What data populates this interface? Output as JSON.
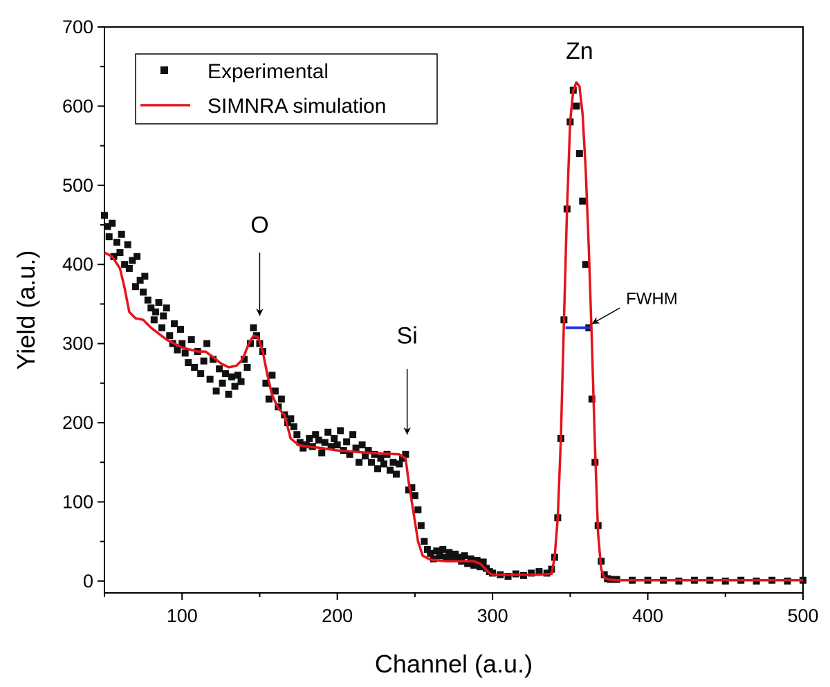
{
  "chart_data": {
    "type": "scatter",
    "xlabel": "Channel (a.u.)",
    "ylabel": "Yield (a.u.)",
    "xlim": [
      50,
      500
    ],
    "ylim": [
      -15,
      700
    ],
    "xticks": [
      100,
      200,
      300,
      400,
      500
    ],
    "yticks": [
      0,
      100,
      200,
      300,
      400,
      500,
      600,
      700
    ],
    "grid": false,
    "legend_position": "top-left",
    "annotations": [
      {
        "text": "O",
        "x": 150,
        "label_y": 440,
        "arrow_from_y": 415,
        "arrow_to_y": 335
      },
      {
        "text": "Si",
        "x": 245,
        "label_y": 300,
        "arrow_from_y": 268,
        "arrow_to_y": 185
      },
      {
        "text": "Zn",
        "x": 356,
        "label_y": 660
      },
      {
        "text": "FWHM",
        "x": 386,
        "label_y": 350,
        "arrow_from_x": 382,
        "arrow_from_y": 345,
        "arrow_to_x": 364,
        "arrow_to_y": 325
      }
    ],
    "fwhm": {
      "x_start": 347,
      "x_end": 363,
      "y": 320,
      "color": "#1f2fe0"
    },
    "series": [
      {
        "name": "Experimental",
        "style": "square-markers",
        "color": "#111111",
        "x": [
          50,
          52,
          53,
          55,
          56,
          58,
          60,
          61,
          63,
          65,
          66,
          68,
          70,
          71,
          73,
          75,
          76,
          78,
          80,
          82,
          83,
          85,
          87,
          88,
          90,
          92,
          94,
          95,
          97,
          99,
          100,
          102,
          104,
          106,
          108,
          110,
          112,
          114,
          116,
          118,
          120,
          122,
          124,
          126,
          128,
          130,
          132,
          134,
          136,
          138,
          140,
          142,
          144,
          146,
          148,
          150,
          152,
          154,
          156,
          158,
          160,
          162,
          164,
          166,
          168,
          170,
          172,
          174,
          176,
          178,
          180,
          182,
          184,
          186,
          188,
          190,
          192,
          194,
          196,
          198,
          200,
          202,
          204,
          206,
          208,
          210,
          212,
          214,
          216,
          218,
          220,
          222,
          224,
          226,
          228,
          230,
          232,
          234,
          236,
          238,
          240,
          242,
          244,
          246,
          248,
          250,
          252,
          254,
          256,
          258,
          260,
          262,
          264,
          266,
          268,
          270,
          272,
          274,
          276,
          278,
          280,
          282,
          284,
          286,
          288,
          290,
          292,
          294,
          296,
          298,
          300,
          305,
          310,
          315,
          320,
          325,
          330,
          335,
          338,
          340,
          342,
          344,
          346,
          348,
          350,
          352,
          354,
          356,
          358,
          360,
          362,
          364,
          366,
          368,
          370,
          372,
          374,
          376,
          380,
          390,
          400,
          410,
          420,
          430,
          440,
          450,
          460,
          470,
          480,
          490,
          500
        ],
        "y": [
          462,
          448,
          435,
          452,
          410,
          428,
          415,
          438,
          400,
          425,
          395,
          405,
          372,
          410,
          380,
          365,
          385,
          355,
          345,
          330,
          340,
          352,
          320,
          335,
          345,
          310,
          300,
          325,
          292,
          318,
          300,
          288,
          276,
          305,
          270,
          290,
          262,
          278,
          300,
          255,
          280,
          240,
          268,
          250,
          262,
          236,
          258,
          246,
          260,
          252,
          280,
          270,
          300,
          320,
          310,
          300,
          290,
          250,
          230,
          260,
          240,
          220,
          230,
          210,
          200,
          205,
          195,
          185,
          175,
          168,
          172,
          180,
          170,
          185,
          178,
          162,
          175,
          188,
          170,
          180,
          172,
          190,
          165,
          176,
          160,
          185,
          168,
          150,
          172,
          158,
          165,
          150,
          160,
          142,
          155,
          148,
          160,
          140,
          150,
          135,
          148,
          155,
          160,
          115,
          118,
          108,
          90,
          70,
          50,
          40,
          35,
          28,
          38,
          32,
          40,
          30,
          36,
          28,
          34,
          30,
          25,
          32,
          22,
          28,
          20,
          26,
          18,
          24,
          16,
          12,
          10,
          8,
          6,
          9,
          7,
          10,
          12,
          10,
          15,
          30,
          80,
          180,
          330,
          470,
          580,
          620,
          600,
          540,
          480,
          400,
          320,
          230,
          150,
          70,
          25,
          8,
          3,
          2,
          2,
          1,
          1,
          1,
          0,
          1,
          1,
          0,
          1,
          0,
          1,
          0,
          1
        ]
      },
      {
        "name": "SIMNRA simulation",
        "style": "line",
        "color": "#e4141b",
        "x": [
          50,
          55,
          60,
          63,
          66,
          70,
          75,
          80,
          90,
          100,
          110,
          115,
          120,
          125,
          130,
          135,
          138,
          140,
          143,
          146,
          149,
          152,
          155,
          158,
          162,
          166,
          170,
          175,
          180,
          190,
          200,
          220,
          240,
          244,
          246,
          248,
          250,
          252,
          255,
          260,
          270,
          280,
          288,
          292,
          298,
          300,
          310,
          320,
          330,
          338,
          340,
          342,
          344,
          346,
          348,
          350,
          352,
          354,
          356,
          358,
          360,
          362,
          364,
          366,
          368,
          370,
          372,
          375,
          380,
          400,
          450,
          500
        ],
        "y": [
          415,
          410,
          395,
          370,
          340,
          332,
          330,
          320,
          305,
          295,
          290,
          290,
          283,
          275,
          270,
          272,
          278,
          285,
          300,
          310,
          308,
          290,
          260,
          235,
          218,
          210,
          180,
          172,
          170,
          168,
          165,
          162,
          160,
          155,
          125,
          100,
          75,
          50,
          32,
          27,
          25,
          25,
          25,
          22,
          10,
          8,
          8,
          8,
          8,
          9,
          30,
          80,
          180,
          330,
          470,
          580,
          620,
          630,
          625,
          590,
          520,
          420,
          300,
          170,
          60,
          15,
          4,
          2,
          1,
          1,
          1,
          1
        ]
      }
    ]
  }
}
